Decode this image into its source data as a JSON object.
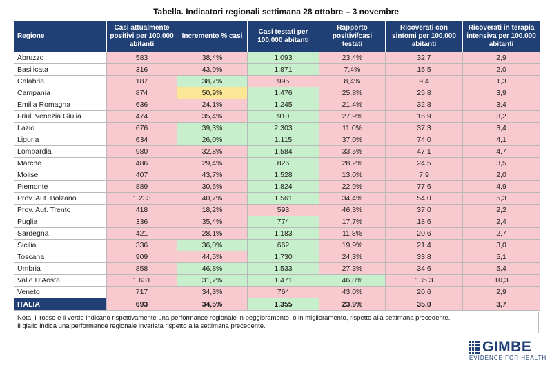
{
  "title": "Tabella. Indicatori regionali settimana 28 ottobre – 3 novembre",
  "table": {
    "headers": [
      "Regione",
      "Casi attualmente positivi per 100.000 abitanti",
      "Incremento % casi",
      "Casi testati per 100.000 abitanti",
      "Rapporto positivi/casi testati",
      "Ricoverati con sintomi per 100.000 abitanti",
      "Ricoverati in terapia intensiva per 100.000 abitanti"
    ],
    "colors": {
      "red": "#f8cad0",
      "green": "#c8efcb",
      "yellow": "#fbe695",
      "header": "#1f3f75"
    },
    "rows": [
      {
        "region": "Abruzzo",
        "values": [
          "583",
          "38,4%",
          "1.093",
          "23,4%",
          "32,7",
          "2,9"
        ],
        "status": [
          "r",
          "r",
          "g",
          "r",
          "r",
          "r"
        ]
      },
      {
        "region": "Basilicata",
        "values": [
          "316",
          "43,9%",
          "1.871",
          "7,4%",
          "15,5",
          "2,0"
        ],
        "status": [
          "r",
          "r",
          "g",
          "r",
          "r",
          "r"
        ]
      },
      {
        "region": "Calabria",
        "values": [
          "187",
          "38,7%",
          "995",
          "8,4%",
          "9,4",
          "1,3"
        ],
        "status": [
          "r",
          "g",
          "r",
          "r",
          "r",
          "r"
        ]
      },
      {
        "region": "Campania",
        "values": [
          "874",
          "50,9%",
          "1.476",
          "25,8%",
          "25,8",
          "3,9"
        ],
        "status": [
          "r",
          "y",
          "g",
          "r",
          "r",
          "r"
        ]
      },
      {
        "region": "Emilia Romagna",
        "values": [
          "636",
          "24,1%",
          "1.245",
          "21,4%",
          "32,8",
          "3,4"
        ],
        "status": [
          "r",
          "r",
          "g",
          "r",
          "r",
          "r"
        ]
      },
      {
        "region": "Friuli Venezia Giulia",
        "values": [
          "474",
          "35,4%",
          "910",
          "27,9%",
          "16,9",
          "3,2"
        ],
        "status": [
          "r",
          "r",
          "g",
          "r",
          "r",
          "r"
        ]
      },
      {
        "region": "Lazio",
        "values": [
          "676",
          "39,3%",
          "2.303",
          "11,0%",
          "37,3",
          "3,4"
        ],
        "status": [
          "r",
          "g",
          "g",
          "r",
          "r",
          "r"
        ]
      },
      {
        "region": "Liguria",
        "values": [
          "634",
          "26,0%",
          "1.115",
          "37,0%",
          "74,0",
          "4,1"
        ],
        "status": [
          "r",
          "g",
          "g",
          "r",
          "r",
          "r"
        ]
      },
      {
        "region": "Lombardia",
        "values": [
          "980",
          "32,8%",
          "1.584",
          "33,5%",
          "47,1",
          "4,7"
        ],
        "status": [
          "r",
          "r",
          "g",
          "r",
          "r",
          "r"
        ]
      },
      {
        "region": "Marche",
        "values": [
          "486",
          "29,4%",
          "826",
          "28,2%",
          "24,5",
          "3,5"
        ],
        "status": [
          "r",
          "r",
          "g",
          "r",
          "r",
          "r"
        ]
      },
      {
        "region": "Molise",
        "values": [
          "407",
          "43,7%",
          "1.528",
          "13,0%",
          "7,9",
          "2,0"
        ],
        "status": [
          "r",
          "r",
          "g",
          "r",
          "r",
          "r"
        ]
      },
      {
        "region": "Piemonte",
        "values": [
          "889",
          "30,6%",
          "1.824",
          "22,9%",
          "77,6",
          "4,9"
        ],
        "status": [
          "r",
          "r",
          "g",
          "r",
          "r",
          "r"
        ]
      },
      {
        "region": "Prov. Aut. Bolzano",
        "values": [
          "1.233",
          "40,7%",
          "1.561",
          "34,4%",
          "54,0",
          "5,3"
        ],
        "status": [
          "r",
          "r",
          "g",
          "r",
          "r",
          "r"
        ]
      },
      {
        "region": "Prov. Aut. Trento",
        "values": [
          "418",
          "18,2%",
          "593",
          "46,3%",
          "37,0",
          "2,2"
        ],
        "status": [
          "r",
          "r",
          "r",
          "r",
          "r",
          "r"
        ]
      },
      {
        "region": "Puglia",
        "values": [
          "336",
          "35,4%",
          "774",
          "17,7%",
          "18,6",
          "2,4"
        ],
        "status": [
          "r",
          "r",
          "g",
          "r",
          "r",
          "r"
        ]
      },
      {
        "region": "Sardegna",
        "values": [
          "421",
          "28,1%",
          "1.183",
          "11,8%",
          "20,6",
          "2,7"
        ],
        "status": [
          "r",
          "r",
          "g",
          "r",
          "r",
          "r"
        ]
      },
      {
        "region": "Sicilia",
        "values": [
          "336",
          "36,0%",
          "662",
          "19,9%",
          "21,4",
          "3,0"
        ],
        "status": [
          "r",
          "g",
          "g",
          "r",
          "r",
          "r"
        ]
      },
      {
        "region": "Toscana",
        "values": [
          "909",
          "44,5%",
          "1.730",
          "24,3%",
          "33,8",
          "5,1"
        ],
        "status": [
          "r",
          "r",
          "g",
          "r",
          "r",
          "r"
        ]
      },
      {
        "region": "Umbria",
        "values": [
          "858",
          "46,8%",
          "1.533",
          "27,3%",
          "34,6",
          "5,4"
        ],
        "status": [
          "r",
          "g",
          "g",
          "r",
          "r",
          "r"
        ]
      },
      {
        "region": "Valle D'Aosta",
        "values": [
          "1.631",
          "31,7%",
          "1.471",
          "46,8%",
          "135,3",
          "10,3"
        ],
        "status": [
          "r",
          "g",
          "g",
          "g",
          "r",
          "r"
        ]
      },
      {
        "region": "Veneto",
        "values": [
          "717",
          "34,3%",
          "764",
          "43,0%",
          "20,6",
          "2,9"
        ],
        "status": [
          "r",
          "r",
          "r",
          "r",
          "r",
          "r"
        ]
      }
    ],
    "total": {
      "region": "ITALIA",
      "values": [
        "693",
        "34,5%",
        "1.355",
        "23,9%",
        "35,0",
        "3,7"
      ],
      "status": [
        "r",
        "r",
        "g",
        "r",
        "r",
        "r"
      ]
    }
  },
  "notes": [
    "Nota: il rosso e il verde indicano rispettivamente una performance regionale in peggioramento, o in miglioramento, rispetto alla settimana precedente.",
    "Il giallo indica una performance regionale invariata rispetto alla settimana precedente."
  ],
  "logo": {
    "name": "GIMBE",
    "tagline": "EVIDENCE FOR HEALTH",
    "icon": "grid-logo-icon"
  }
}
